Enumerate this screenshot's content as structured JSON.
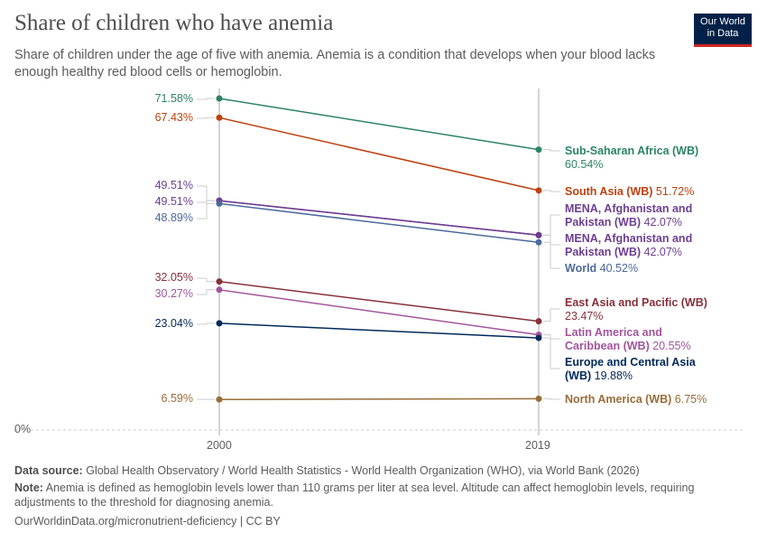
{
  "title": "Share of children who have anemia",
  "subtitle": "Share of children under the age of five with anemia. Anemia is a condition that develops when your blood lacks enough healthy red blood cells or hemoglobin.",
  "logo": {
    "line1": "Our World",
    "line2": "in Data"
  },
  "chart_data": {
    "type": "line",
    "categories": [
      "2000",
      "2019"
    ],
    "ylim": [
      0,
      75
    ],
    "y_tick_labels": [
      "0%"
    ],
    "series": [
      {
        "name": "Sub-Saharan Africa (WB)",
        "values": [
          71.58,
          60.54
        ],
        "labels": [
          "71.58%",
          "60.54%"
        ],
        "color": "#2c8465"
      },
      {
        "name": "South Asia (WB)",
        "values": [
          67.43,
          51.72
        ],
        "labels": [
          "67.43%",
          "51.72%"
        ],
        "color": "#be400e"
      },
      {
        "name": "MENA, Afghanistan and Pakistan (WB)",
        "values": [
          49.51,
          42.07
        ],
        "labels": [
          "49.51%",
          "42.07%"
        ],
        "color": "#6d3e91"
      },
      {
        "name": "MENA, Afghanistan and Pakistan (WB)",
        "values": [
          49.51,
          42.07
        ],
        "labels": [
          "49.51%",
          "42.07%"
        ],
        "color": "#6d3e91"
      },
      {
        "name": "World",
        "values": [
          48.89,
          40.52
        ],
        "labels": [
          "48.89%",
          "40.52%"
        ],
        "color": "#4c6a9c"
      },
      {
        "name": "East Asia and Pacific (WB)",
        "values": [
          32.05,
          23.47
        ],
        "labels": [
          "32.05%",
          "23.47%"
        ],
        "color": "#883039"
      },
      {
        "name": "Latin America and Caribbean (WB)",
        "values": [
          30.27,
          20.55
        ],
        "labels": [
          "30.27%",
          "20.55%"
        ],
        "color": "#a2559c"
      },
      {
        "name": "Europe and Central Asia (WB)",
        "values": [
          23.04,
          19.88
        ],
        "labels": [
          "23.04%",
          "19.88%"
        ],
        "color": "#00295b"
      },
      {
        "name": "North America (WB)",
        "values": [
          6.59,
          6.75
        ],
        "labels": [
          "6.59%",
          "6.75%"
        ],
        "color": "#986d39"
      }
    ]
  },
  "footer": {
    "source_label": "Data source:",
    "source": "Global Health Observatory / World Health Statistics - World Health Organization (WHO), via World Bank (2026)",
    "note_label": "Note:",
    "note": "Anemia is defined as hemoglobin levels lower than 110 grams per liter at sea level. Altitude can affect hemoglobin levels, requiring adjustments to the threshold for diagnosing anemia.",
    "url": "OurWorldinData.org/micronutrient-deficiency | CC BY"
  }
}
